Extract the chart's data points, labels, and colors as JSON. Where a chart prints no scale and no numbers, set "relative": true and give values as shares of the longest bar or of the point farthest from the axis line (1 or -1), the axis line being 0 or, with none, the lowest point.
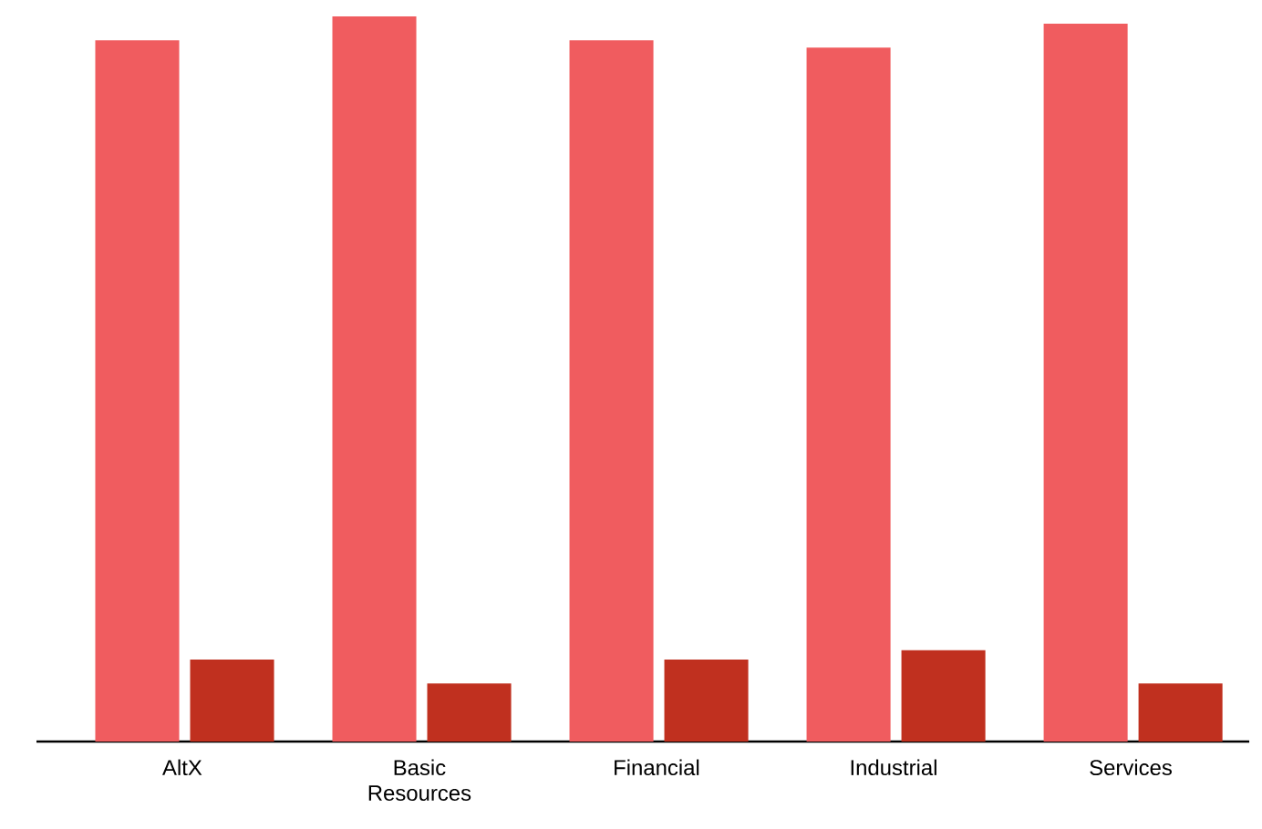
{
  "chart_data": {
    "type": "bar",
    "relative": true,
    "categories": [
      "AltX",
      "Basic Resources",
      "Financial",
      "Industrial",
      "Services"
    ],
    "series": [
      {
        "color": "#f05c5f",
        "values": [
          0.967,
          1,
          0.967,
          0.957,
          0.99
        ]
      },
      {
        "color": "#c0301f",
        "values": [
          0.113,
          0.08,
          0.113,
          0.126,
          0.08
        ]
      }
    ]
  }
}
